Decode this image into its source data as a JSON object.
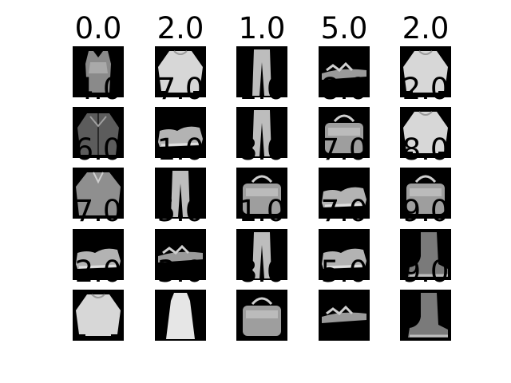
{
  "grid": {
    "rows": 5,
    "cols": 5,
    "items": [
      {
        "label": "0.0",
        "item": "tank-top"
      },
      {
        "label": "2.0",
        "item": "pullover"
      },
      {
        "label": "1.0",
        "item": "trouser"
      },
      {
        "label": "5.0",
        "item": "sandal"
      },
      {
        "label": "2.0",
        "item": "pullover"
      },
      {
        "label": "4.0",
        "item": "coat"
      },
      {
        "label": "7.0",
        "item": "sneaker"
      },
      {
        "label": "1.0",
        "item": "trouser"
      },
      {
        "label": "8.0",
        "item": "bag"
      },
      {
        "label": "2.0",
        "item": "pullover"
      },
      {
        "label": "6.0",
        "item": "shirt"
      },
      {
        "label": "1.0",
        "item": "trouser"
      },
      {
        "label": "8.0",
        "item": "bag"
      },
      {
        "label": "7.0",
        "item": "sneaker"
      },
      {
        "label": "8.0",
        "item": "bag"
      },
      {
        "label": "7.0",
        "item": "sneaker"
      },
      {
        "label": "5.0",
        "item": "sandal"
      },
      {
        "label": "1.0",
        "item": "trouser"
      },
      {
        "label": "7.0",
        "item": "sneaker"
      },
      {
        "label": "9.0",
        "item": "ankle-boot"
      },
      {
        "label": "2.0",
        "item": "pullover"
      },
      {
        "label": "3.0",
        "item": "dress"
      },
      {
        "label": "8.0",
        "item": "bag"
      },
      {
        "label": "5.0",
        "item": "sandal"
      },
      {
        "label": "9.0",
        "item": "ankle-boot"
      }
    ]
  }
}
